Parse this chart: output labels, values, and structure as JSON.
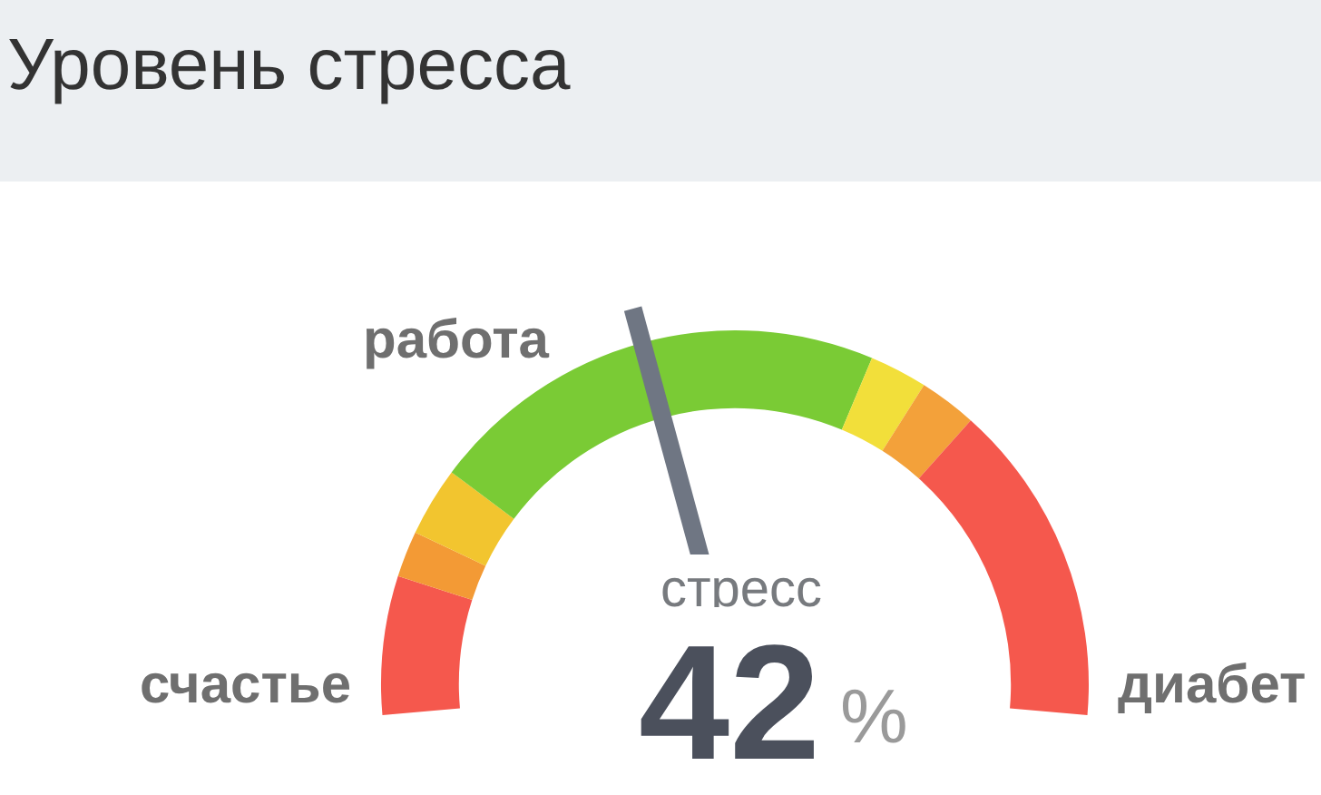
{
  "chart_data": {
    "type": "donut",
    "title": "Уровень стресса",
    "categories": [
      "счастье",
      null,
      null,
      "работа",
      null,
      null,
      "диабет"
    ],
    "values": [
      12,
      4,
      6,
      40,
      5,
      5,
      28
    ],
    "colors": [
      "#f5584d",
      "#f39a35",
      "#f2c52f",
      "#7acb35",
      "#f2df3a",
      "#f3a13a",
      "#f5584d"
    ],
    "needle": "работа",
    "annotations": [
      "стресс",
      "42",
      "%"
    ]
  }
}
